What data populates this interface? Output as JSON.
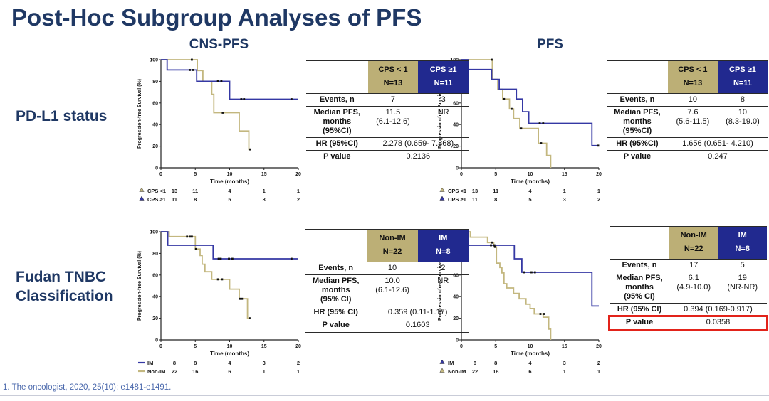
{
  "slide": {
    "title": "Post-Hoc Subgroup Analyses of PFS",
    "col_header_left": "CNS-PFS",
    "col_header_right": "PFS",
    "row_label_top": "PD-L1 status",
    "row_label_bottom": "Fudan TNBC\nClassification",
    "footnote": "1. The oncologist, 2020, 25(10): e1481-e1491."
  },
  "colors": {
    "title_navy": "#1F3864",
    "table_navy": "#21298F",
    "table_tan": "#BCAF76",
    "curve_blue": "#3538A4",
    "curve_tan": "#C3B77F",
    "highlight_red": "#E2231A",
    "footnote_blue": "#4A68AC"
  },
  "tables": [
    {
      "id": "pdl1-cns-pfs",
      "col_tan": "CPS < 1\nN=13",
      "col_navy": "CPS ≥1\nN=11",
      "rows": [
        {
          "label": "Events, n",
          "v1": "7",
          "v2": "3"
        },
        {
          "label": "Median PFS,\nmonths\n(95%CI)",
          "v1": "11.5\n(6.1-12.6)",
          "v2": "NR"
        },
        {
          "label": "HR (95%CI)",
          "span": "2.278 (0.659- 7.868)"
        },
        {
          "label": "P value",
          "span": "0.2136"
        }
      ]
    },
    {
      "id": "pdl1-pfs",
      "col_tan": "CPS < 1\nN=13",
      "col_navy": "CPS ≥1\nN=11",
      "rows": [
        {
          "label": "Events, n",
          "v1": "10",
          "v2": "8"
        },
        {
          "label": "Median PFS,\nmonths\n(95%CI)",
          "v1": "7.6\n(5.6-11.5)",
          "v2": "10\n(8.3-19.0)"
        },
        {
          "label": "HR (95%CI)",
          "span": "1.656 (0.651- 4.210)"
        },
        {
          "label": "P value",
          "span": "0.247"
        }
      ]
    },
    {
      "id": "fudan-cns-pfs",
      "col_tan": "Non-IM\nN=22",
      "col_navy": "IM\nN=8",
      "rows": [
        {
          "label": "Events, n",
          "v1": "10",
          "v2": "2"
        },
        {
          "label": "Median PFS,\nmonths\n(95% CI)",
          "v1": "10.0\n(6.1-12.6)",
          "v2": "NR"
        },
        {
          "label": "HR (95% CI)",
          "span": "0.359 (0.11-1.17)"
        },
        {
          "label": "P value",
          "span": "0.1603"
        }
      ]
    },
    {
      "id": "fudan-pfs",
      "col_tan": "Non-IM\nN=22",
      "col_navy": "IM\nN=8",
      "rows": [
        {
          "label": "Events, n",
          "v1": "17",
          "v2": "5"
        },
        {
          "label": "Median PFS,\nmonths\n(95% CI)",
          "v1": "6.1\n(4.9-10.0)",
          "v2": "19\n(NR-NR)"
        },
        {
          "label": "HR (95% CI)",
          "span": "0.394 (0.169-0.917)"
        },
        {
          "label": "P value",
          "span": "0.0358",
          "highlighted": true
        }
      ]
    }
  ],
  "chart_data": [
    {
      "id": "cns-pfs-pdl1",
      "type": "line",
      "subtype": "kaplan-meier",
      "xlabel": "Time (months)",
      "ylabel": "Progression-free Survival (%)",
      "xlim": [
        0,
        20
      ],
      "ylim": [
        0,
        100
      ],
      "xticks": [
        0,
        5,
        10,
        15,
        20
      ],
      "yticks": [
        0,
        20,
        40,
        60,
        80,
        100
      ],
      "grid": false,
      "series": [
        {
          "name": "CPS <1",
          "color": "tan",
          "marker": "triangle",
          "at_risk": [
            13,
            11,
            4,
            1,
            1
          ],
          "steps": [
            [
              0,
              100
            ],
            [
              5.3,
              100
            ],
            [
              5.3,
              90
            ],
            [
              6.1,
              90
            ],
            [
              6.1,
              80
            ],
            [
              7.4,
              80
            ],
            [
              7.4,
              68
            ],
            [
              7.7,
              68
            ],
            [
              7.7,
              51
            ],
            [
              11.4,
              51
            ],
            [
              11.4,
              34
            ],
            [
              12.8,
              34
            ],
            [
              12.8,
              17
            ],
            [
              13.1,
              17
            ]
          ],
          "censors": [
            [
              4.5,
              100
            ],
            [
              9.0,
              51
            ],
            [
              13.0,
              17
            ]
          ]
        },
        {
          "name": "CPS ≥1",
          "color": "blue",
          "marker": "triangle",
          "at_risk": [
            11,
            8,
            5,
            3,
            2
          ],
          "steps": [
            [
              0,
              100
            ],
            [
              0.9,
              100
            ],
            [
              0.9,
              90.5
            ],
            [
              5.2,
              90.5
            ],
            [
              5.2,
              80
            ],
            [
              10,
              80
            ],
            [
              10,
              63.5
            ],
            [
              20,
              63.5
            ]
          ],
          "censors": [
            [
              4.2,
              90.5
            ],
            [
              4.7,
              90.5
            ],
            [
              8.3,
              80
            ],
            [
              8.8,
              80
            ],
            [
              11.7,
              63.5
            ],
            [
              12.1,
              63.5
            ],
            [
              19,
              63.5
            ]
          ]
        }
      ]
    },
    {
      "id": "pfs-pdl1",
      "type": "line",
      "subtype": "kaplan-meier",
      "xlabel": "Time (months)",
      "ylabel": "Progression-free Survival (%)",
      "xlim": [
        0,
        20
      ],
      "ylim": [
        0,
        100
      ],
      "xticks": [
        0,
        5,
        10,
        15,
        20
      ],
      "yticks": [
        0,
        20,
        40,
        60,
        80,
        100
      ],
      "grid": false,
      "series": [
        {
          "name": "CPS <1",
          "color": "tan",
          "marker": "triangle",
          "at_risk": [
            13,
            11,
            4,
            1,
            1
          ],
          "steps": [
            [
              0,
              100
            ],
            [
              4.5,
              100
            ],
            [
              4.5,
              81.8
            ],
            [
              5.3,
              81.8
            ],
            [
              5.3,
              72.7
            ],
            [
              6.0,
              72.7
            ],
            [
              6.0,
              63.6
            ],
            [
              7.0,
              63.6
            ],
            [
              7.0,
              54.5
            ],
            [
              7.6,
              54.5
            ],
            [
              7.6,
              45.5
            ],
            [
              8.5,
              45.5
            ],
            [
              8.5,
              36.4
            ],
            [
              11.2,
              36.4
            ],
            [
              11.2,
              22.7
            ],
            [
              12.4,
              22.7
            ],
            [
              12.4,
              11.4
            ],
            [
              13.0,
              11.4
            ],
            [
              13.0,
              0
            ]
          ],
          "censors": [
            [
              4.4,
              100
            ],
            [
              6.2,
              63.6
            ],
            [
              7.3,
              54.5
            ],
            [
              8.7,
              36.4
            ],
            [
              11.6,
              22.7
            ]
          ]
        },
        {
          "name": "CPS ≥1",
          "color": "blue",
          "marker": "triangle",
          "at_risk": [
            11,
            8,
            5,
            3,
            2
          ],
          "steps": [
            [
              0,
              100
            ],
            [
              1.0,
              100
            ],
            [
              1.0,
              90.9
            ],
            [
              4.4,
              90.9
            ],
            [
              4.4,
              81.8
            ],
            [
              5.5,
              81.8
            ],
            [
              5.5,
              72.7
            ],
            [
              8.0,
              72.7
            ],
            [
              8.0,
              63.6
            ],
            [
              8.9,
              63.6
            ],
            [
              8.9,
              51.9
            ],
            [
              9.8,
              51.9
            ],
            [
              9.8,
              41.1
            ],
            [
              19.0,
              41.1
            ],
            [
              19.0,
              20.5
            ],
            [
              20.0,
              20.5
            ]
          ],
          "censors": [
            [
              11.4,
              41.1
            ],
            [
              11.9,
              41.1
            ],
            [
              19.9,
              20.5
            ]
          ]
        }
      ]
    },
    {
      "id": "cns-pfs-fudan",
      "type": "line",
      "subtype": "kaplan-meier",
      "xlabel": "Time (months)",
      "ylabel": "Progression-free Survival (%)",
      "xlim": [
        0,
        20
      ],
      "ylim": [
        0,
        100
      ],
      "xticks": [
        0,
        5,
        10,
        15,
        20
      ],
      "yticks": [
        0,
        20,
        40,
        60,
        80,
        100
      ],
      "grid": false,
      "series": [
        {
          "name": "IM",
          "color": "blue",
          "marker": "dash",
          "at_risk": [
            8,
            8,
            4,
            3,
            2
          ],
          "steps": [
            [
              0,
              100
            ],
            [
              1.0,
              100
            ],
            [
              1.0,
              87.5
            ],
            [
              7.6,
              87.5
            ],
            [
              7.6,
              75
            ],
            [
              20,
              75
            ]
          ],
          "censors": [
            [
              8.4,
              75
            ],
            [
              8.7,
              75
            ],
            [
              9.9,
              75
            ],
            [
              10.4,
              75
            ],
            [
              19.0,
              75
            ]
          ]
        },
        {
          "name": "Non-IM",
          "color": "tan",
          "marker": "dash",
          "at_risk": [
            22,
            16,
            6,
            1,
            1
          ],
          "steps": [
            [
              0,
              100
            ],
            [
              1.2,
              100
            ],
            [
              1.2,
              95.5
            ],
            [
              5.0,
              95.5
            ],
            [
              5.0,
              84
            ],
            [
              5.7,
              84
            ],
            [
              5.7,
              78
            ],
            [
              6.0,
              78
            ],
            [
              6.0,
              70
            ],
            [
              6.4,
              70
            ],
            [
              6.4,
              63
            ],
            [
              7.4,
              63
            ],
            [
              7.4,
              56
            ],
            [
              10.0,
              56
            ],
            [
              10.0,
              47
            ],
            [
              11.4,
              47
            ],
            [
              11.4,
              38
            ],
            [
              12.6,
              38
            ],
            [
              12.6,
              20
            ],
            [
              13.0,
              20
            ]
          ],
          "censors": [
            [
              3.8,
              95.5
            ],
            [
              4.2,
              95.5
            ],
            [
              4.5,
              95.5
            ],
            [
              5.1,
              84
            ],
            [
              8.3,
              56
            ],
            [
              8.9,
              56
            ],
            [
              11.5,
              38
            ],
            [
              11.8,
              38
            ],
            [
              12.9,
              20
            ]
          ]
        }
      ]
    },
    {
      "id": "pfs-fudan",
      "type": "line",
      "subtype": "kaplan-meier",
      "xlabel": "Time (months)",
      "ylabel": "Progression-free Survival (%)",
      "xlim": [
        0,
        20
      ],
      "ylim": [
        0,
        100
      ],
      "xticks": [
        0,
        5,
        10,
        15,
        20
      ],
      "yticks": [
        0,
        20,
        40,
        60,
        80,
        100
      ],
      "grid": false,
      "series": [
        {
          "name": "IM",
          "color": "blue",
          "marker": "triangle",
          "at_risk": [
            8,
            8,
            4,
            3,
            2
          ],
          "steps": [
            [
              0,
              100
            ],
            [
              1.0,
              100
            ],
            [
              1.0,
              87.5
            ],
            [
              7.7,
              87.5
            ],
            [
              7.7,
              75
            ],
            [
              8.8,
              75
            ],
            [
              8.8,
              62.5
            ],
            [
              19.0,
              62.5
            ],
            [
              19.0,
              31.3
            ],
            [
              20,
              31.3
            ]
          ],
          "censors": [
            [
              4.3,
              87.5
            ],
            [
              4.8,
              87.5
            ],
            [
              9.1,
              62.5
            ],
            [
              10.2,
              62.5
            ],
            [
              10.7,
              62.5
            ]
          ]
        },
        {
          "name": "Non-IM",
          "color": "tan",
          "marker": "triangle",
          "at_risk": [
            22,
            16,
            6,
            1,
            1
          ],
          "steps": [
            [
              0,
              100
            ],
            [
              1.3,
              100
            ],
            [
              1.3,
              95
            ],
            [
              3.8,
              95
            ],
            [
              3.8,
              90
            ],
            [
              4.7,
              90
            ],
            [
              4.7,
              86
            ],
            [
              5.1,
              86
            ],
            [
              5.1,
              71
            ],
            [
              5.6,
              71
            ],
            [
              5.6,
              67
            ],
            [
              5.9,
              67
            ],
            [
              5.9,
              62
            ],
            [
              6.2,
              62
            ],
            [
              6.2,
              52
            ],
            [
              6.6,
              52
            ],
            [
              6.6,
              48
            ],
            [
              7.6,
              48
            ],
            [
              7.6,
              43
            ],
            [
              8.4,
              43
            ],
            [
              8.4,
              38
            ],
            [
              9.4,
              38
            ],
            [
              9.4,
              33
            ],
            [
              10.0,
              33
            ],
            [
              10.0,
              29
            ],
            [
              10.6,
              29
            ],
            [
              10.6,
              24
            ],
            [
              11.9,
              24
            ],
            [
              11.9,
              21
            ],
            [
              12.7,
              21
            ],
            [
              12.7,
              10
            ],
            [
              13.0,
              10
            ],
            [
              13.0,
              0
            ]
          ],
          "censors": [
            [
              4.5,
              90
            ],
            [
              4.9,
              86
            ],
            [
              11.5,
              24
            ],
            [
              12.0,
              24
            ]
          ]
        }
      ]
    }
  ]
}
